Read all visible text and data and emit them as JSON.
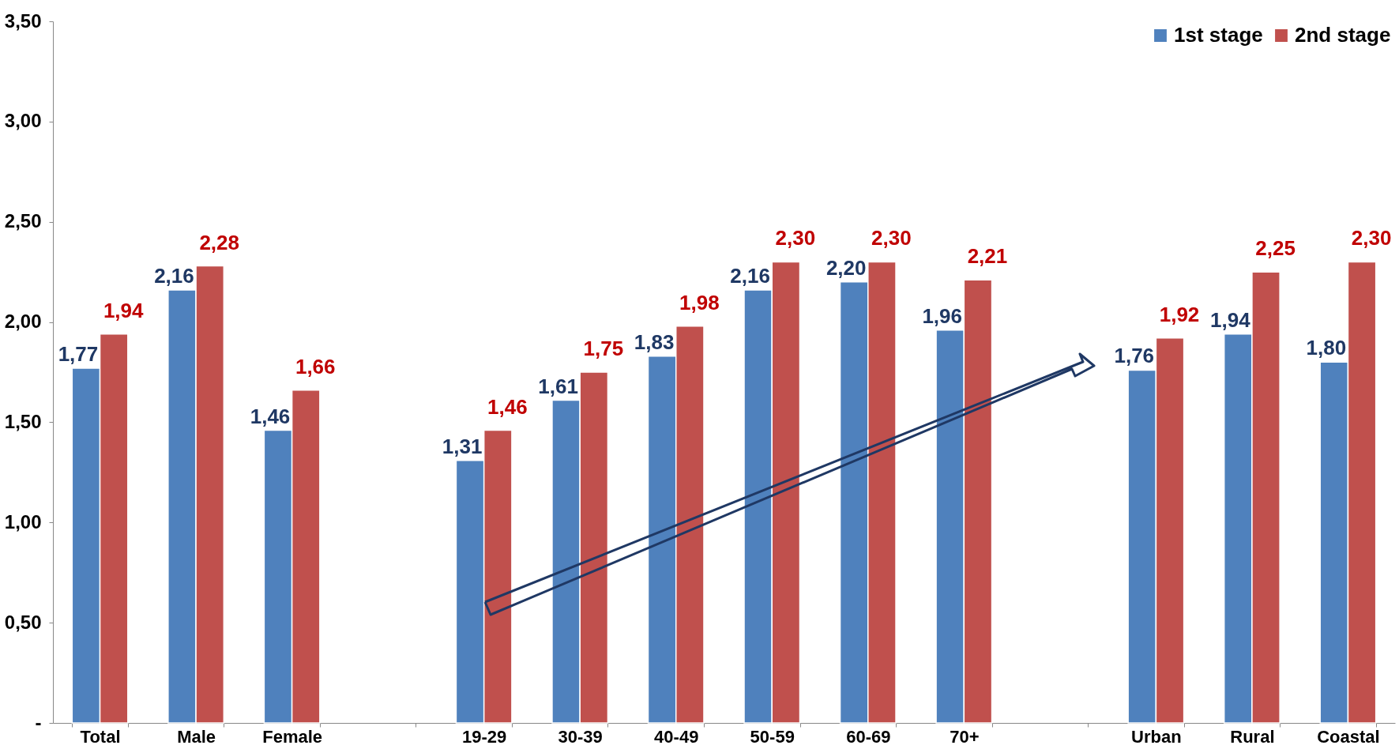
{
  "chart_data": {
    "type": "bar",
    "categories": [
      "Total",
      "Male",
      "Female",
      null,
      "19-29",
      "30-39",
      "40-49",
      "50-59",
      "60-69",
      "70+",
      null,
      "Urban",
      "Rural",
      "Coastal"
    ],
    "series": [
      {
        "name": "1st stage",
        "color": "#4f81bd",
        "values": [
          1.77,
          2.16,
          1.46,
          null,
          1.31,
          1.61,
          1.83,
          2.16,
          2.2,
          1.96,
          null,
          1.76,
          1.94,
          1.8
        ],
        "value_labels": [
          "1,77",
          "2,16",
          "1,46",
          null,
          "1,31",
          "1,61",
          "1,83",
          "2,16",
          "2,20",
          "1,96",
          null,
          "1,76",
          "1,94",
          "1,80"
        ]
      },
      {
        "name": "2nd stage",
        "color": "#c0504d",
        "values": [
          1.94,
          2.28,
          1.66,
          null,
          1.46,
          1.75,
          1.98,
          2.3,
          2.3,
          2.21,
          null,
          1.92,
          2.25,
          2.3
        ],
        "value_labels": [
          "1,94",
          "2,28",
          "1,66",
          null,
          "1,46",
          "1,75",
          "1,98",
          "2,30",
          "2,30",
          "2,21",
          null,
          "1,92",
          "2,25",
          "2,30"
        ]
      }
    ],
    "ylim": [
      0,
      3.5
    ],
    "yticks": [
      {
        "value": 0,
        "label": "-"
      },
      {
        "value": 0.5,
        "label": "0,50"
      },
      {
        "value": 1,
        "label": "1,00"
      },
      {
        "value": 1.5,
        "label": "1,50"
      },
      {
        "value": 2,
        "label": "2,00"
      },
      {
        "value": 2.5,
        "label": "2,50"
      },
      {
        "value": 3,
        "label": "3,00"
      },
      {
        "value": 3.5,
        "label": "3,50"
      }
    ],
    "grid": false,
    "legend": "top right"
  }
}
